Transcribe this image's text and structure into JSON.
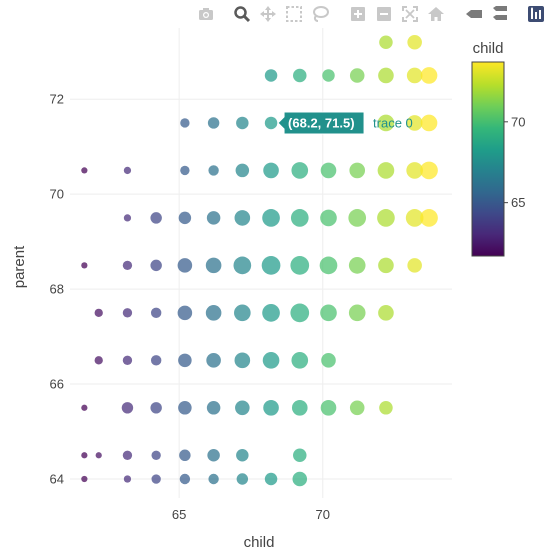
{
  "modebar": {
    "buttons": [
      "camera-icon",
      "zoom-icon",
      "pan-icon",
      "box-select-icon",
      "lasso-icon",
      "zoom-in-icon",
      "zoom-out-icon",
      "autoscale-icon",
      "home-icon",
      "spike-icon",
      "compare-icon",
      "plotly-logo-icon"
    ]
  },
  "colors": {
    "viridis": [
      "#440154",
      "#482878",
      "#3e4989",
      "#31688e",
      "#26828e",
      "#1f9e89",
      "#35b779",
      "#6ece58",
      "#b5de2b",
      "#fde725"
    ],
    "grid": "#eeeeee",
    "hover_bg": "#21918c"
  },
  "chart_data": {
    "type": "scatter",
    "xlabel": "child",
    "ylabel": "parent",
    "xlim": [
      61.2,
      74.5
    ],
    "ylim": [
      63.6,
      73.5
    ],
    "x_ticks": [
      65,
      70
    ],
    "y_ticks": [
      64,
      66,
      68,
      70,
      72
    ],
    "legend": "colorbar-right",
    "colorbar": {
      "title": "child",
      "range": [
        61.7,
        73.7
      ],
      "ticks": [
        65,
        70
      ]
    },
    "marker_size_encodes": "count",
    "hover": {
      "point_label": "(68.2, 71.5)",
      "trace_label": "trace 0",
      "x": 68.2,
      "y": 71.5
    },
    "points": [
      [
        61.7,
        64.0,
        1
      ],
      [
        61.7,
        64.5,
        1
      ],
      [
        61.7,
        65.5,
        1
      ],
      [
        61.7,
        68.5,
        1
      ],
      [
        61.7,
        70.5,
        1
      ],
      [
        62.2,
        64.5,
        1
      ],
      [
        62.2,
        66.5,
        3
      ],
      [
        62.2,
        67.5,
        3
      ],
      [
        63.2,
        64.0,
        2
      ],
      [
        63.2,
        64.5,
        4
      ],
      [
        63.2,
        65.5,
        6
      ],
      [
        63.2,
        66.5,
        4
      ],
      [
        63.2,
        67.5,
        4
      ],
      [
        63.2,
        68.5,
        4
      ],
      [
        63.2,
        69.5,
        2
      ],
      [
        63.2,
        70.5,
        2
      ],
      [
        64.2,
        64.0,
        4
      ],
      [
        64.2,
        64.5,
        4
      ],
      [
        64.2,
        65.5,
        6
      ],
      [
        64.2,
        66.5,
        5
      ],
      [
        64.2,
        67.5,
        5
      ],
      [
        64.2,
        68.5,
        6
      ],
      [
        64.2,
        69.5,
        6
      ],
      [
        65.2,
        64.0,
        5
      ],
      [
        65.2,
        64.5,
        6
      ],
      [
        65.2,
        65.5,
        8
      ],
      [
        65.2,
        66.5,
        8
      ],
      [
        65.2,
        67.5,
        9
      ],
      [
        65.2,
        68.5,
        9
      ],
      [
        65.2,
        69.5,
        7
      ],
      [
        65.2,
        70.5,
        4
      ],
      [
        65.2,
        71.5,
        4
      ],
      [
        66.2,
        64.0,
        5
      ],
      [
        66.2,
        64.5,
        7
      ],
      [
        66.2,
        65.5,
        8
      ],
      [
        66.2,
        66.5,
        9
      ],
      [
        66.2,
        67.5,
        10
      ],
      [
        66.2,
        68.5,
        10
      ],
      [
        66.2,
        69.5,
        8
      ],
      [
        66.2,
        70.5,
        5
      ],
      [
        66.2,
        71.5,
        6
      ],
      [
        67.2,
        64.0,
        6
      ],
      [
        67.2,
        64.5,
        7
      ],
      [
        67.2,
        65.5,
        9
      ],
      [
        67.2,
        66.5,
        10
      ],
      [
        67.2,
        67.5,
        11
      ],
      [
        67.2,
        68.5,
        12
      ],
      [
        67.2,
        69.5,
        10
      ],
      [
        67.2,
        70.5,
        8
      ],
      [
        67.2,
        71.5,
        7
      ],
      [
        68.2,
        64.0,
        7
      ],
      [
        68.2,
        65.5,
        10
      ],
      [
        68.2,
        66.5,
        11
      ],
      [
        68.2,
        67.5,
        12
      ],
      [
        68.2,
        68.5,
        13
      ],
      [
        68.2,
        69.5,
        12
      ],
      [
        68.2,
        70.5,
        10
      ],
      [
        68.2,
        71.5,
        7
      ],
      [
        68.2,
        72.5,
        7
      ],
      [
        69.2,
        64.0,
        9
      ],
      [
        69.2,
        64.5,
        8
      ],
      [
        69.2,
        65.5,
        10
      ],
      [
        69.2,
        66.5,
        11
      ],
      [
        69.2,
        67.5,
        13
      ],
      [
        69.2,
        68.5,
        13
      ],
      [
        69.2,
        69.5,
        12
      ],
      [
        69.2,
        70.5,
        11
      ],
      [
        69.2,
        71.5,
        8
      ],
      [
        69.2,
        72.5,
        8
      ],
      [
        70.2,
        65.5,
        10
      ],
      [
        70.2,
        66.5,
        9
      ],
      [
        70.2,
        67.5,
        11
      ],
      [
        70.2,
        68.5,
        12
      ],
      [
        70.2,
        69.5,
        11
      ],
      [
        70.2,
        70.5,
        10
      ],
      [
        70.2,
        71.5,
        8
      ],
      [
        70.2,
        72.5,
        7
      ],
      [
        71.2,
        65.5,
        9
      ],
      [
        71.2,
        67.5,
        11
      ],
      [
        71.2,
        68.5,
        11
      ],
      [
        71.2,
        69.5,
        12
      ],
      [
        71.2,
        70.5,
        10
      ],
      [
        71.2,
        71.5,
        8
      ],
      [
        71.2,
        72.5,
        9
      ],
      [
        72.2,
        65.5,
        8
      ],
      [
        72.2,
        67.5,
        10
      ],
      [
        72.2,
        68.5,
        10
      ],
      [
        72.2,
        69.5,
        12
      ],
      [
        72.2,
        70.5,
        11
      ],
      [
        72.2,
        71.5,
        11
      ],
      [
        72.2,
        72.5,
        10
      ],
      [
        72.2,
        73.2,
        8
      ],
      [
        73.2,
        68.5,
        9
      ],
      [
        73.2,
        69.5,
        12
      ],
      [
        73.2,
        70.5,
        11
      ],
      [
        73.2,
        71.5,
        10
      ],
      [
        73.2,
        72.5,
        10
      ],
      [
        73.2,
        73.2,
        9
      ],
      [
        73.7,
        69.5,
        12
      ],
      [
        73.7,
        70.5,
        12
      ],
      [
        73.7,
        71.5,
        11
      ],
      [
        73.7,
        72.5,
        11
      ]
    ]
  }
}
